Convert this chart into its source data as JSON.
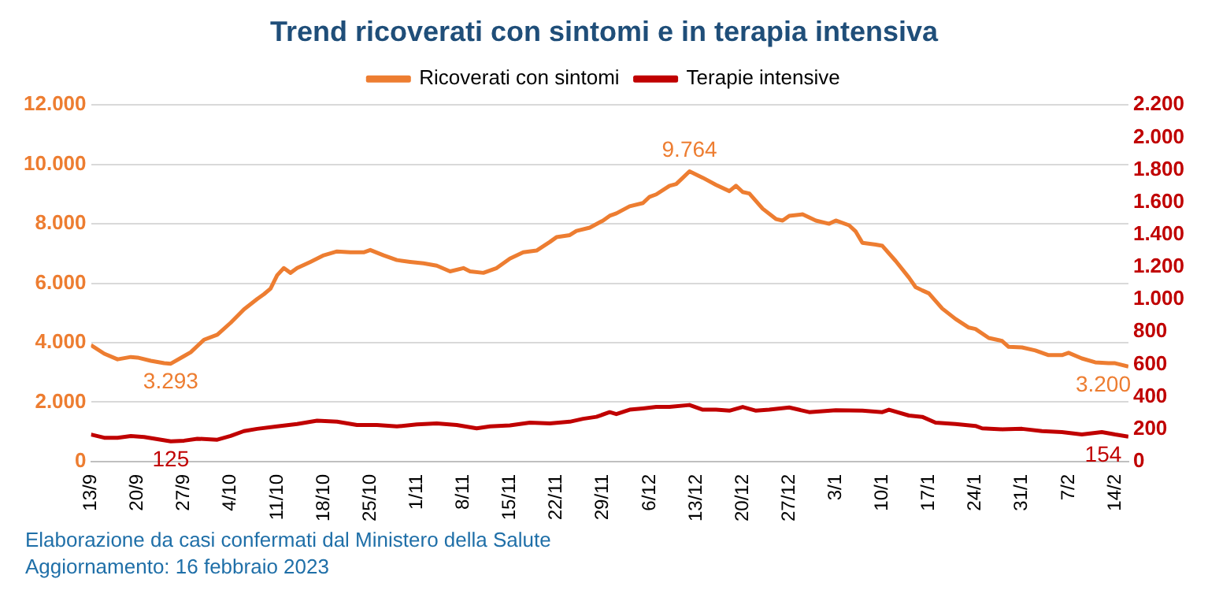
{
  "chart_data": {
    "type": "line",
    "title": "Trend ricoverati con sintomi e in terapia intensiva",
    "legend": "top",
    "grid": "y",
    "marker": "none",
    "line_style": "solid",
    "xlim": [
      "2022-09-13",
      "2023-02-16"
    ],
    "xticks": [
      {
        "value": "2022-09-13",
        "label": "13/9"
      },
      {
        "value": "2022-09-20",
        "label": "20/9"
      },
      {
        "value": "2022-09-27",
        "label": "27/9"
      },
      {
        "value": "2022-10-04",
        "label": "4/10"
      },
      {
        "value": "2022-10-11",
        "label": "11/10"
      },
      {
        "value": "2022-10-18",
        "label": "18/10"
      },
      {
        "value": "2022-10-25",
        "label": "25/10"
      },
      {
        "value": "2022-11-01",
        "label": "1/11"
      },
      {
        "value": "2022-11-08",
        "label": "8/11"
      },
      {
        "value": "2022-11-15",
        "label": "15/11"
      },
      {
        "value": "2022-11-22",
        "label": "22/11"
      },
      {
        "value": "2022-11-29",
        "label": "29/11"
      },
      {
        "value": "2022-12-06",
        "label": "6/12"
      },
      {
        "value": "2022-12-13",
        "label": "13/12"
      },
      {
        "value": "2022-12-20",
        "label": "20/12"
      },
      {
        "value": "2022-12-27",
        "label": "27/12"
      },
      {
        "value": "2023-01-03",
        "label": "3/1"
      },
      {
        "value": "2023-01-10",
        "label": "10/1"
      },
      {
        "value": "2023-01-17",
        "label": "17/1"
      },
      {
        "value": "2023-01-24",
        "label": "24/1"
      },
      {
        "value": "2023-01-31",
        "label": "31/1"
      },
      {
        "value": "2023-02-07",
        "label": "7/2"
      },
      {
        "value": "2023-02-14",
        "label": "14/2"
      }
    ],
    "ylim": [
      0,
      12000
    ],
    "yticks": [
      0,
      {
        "value": 2000,
        "label": "2.000"
      },
      {
        "value": 4000,
        "label": "4.000"
      },
      {
        "value": 6000,
        "label": "6.000"
      },
      {
        "value": 8000,
        "label": "8.000"
      },
      {
        "value": 10000,
        "label": "10.000"
      },
      {
        "value": 12000,
        "label": "12.000"
      }
    ],
    "y2lim": [
      0,
      2200
    ],
    "y2ticks": [
      0,
      200,
      400,
      600,
      800,
      {
        "value": 1000,
        "label": "1.000"
      },
      {
        "value": 1200,
        "label": "1.200"
      },
      {
        "value": 1400,
        "label": "1.400"
      },
      {
        "value": 1600,
        "label": "1.600"
      },
      {
        "value": 1800,
        "label": "1.800"
      },
      {
        "value": 2000,
        "label": "2.000"
      },
      {
        "value": 2200,
        "label": "2.200"
      }
    ],
    "series": [
      {
        "name": "Ricoverati con sintomi",
        "color": "#ed7d31",
        "x": [
          "2022-09-13",
          "2022-09-15",
          "2022-09-17",
          "2022-09-19",
          "2022-09-20",
          "2022-09-22",
          "2022-09-24",
          "2022-09-25",
          "2022-09-27",
          "2022-09-28",
          "2022-09-30",
          "2022-10-02",
          "2022-10-04",
          "2022-10-06",
          "2022-10-08",
          "2022-10-09",
          "2022-10-10",
          "2022-10-11",
          "2022-10-12",
          "2022-10-13",
          "2022-10-14",
          "2022-10-16",
          "2022-10-18",
          "2022-10-20",
          "2022-10-22",
          "2022-10-24",
          "2022-10-25",
          "2022-10-27",
          "2022-10-29",
          "2022-10-31",
          "2022-11-02",
          "2022-11-04",
          "2022-11-06",
          "2022-11-08",
          "2022-11-09",
          "2022-11-11",
          "2022-11-13",
          "2022-11-15",
          "2022-11-17",
          "2022-11-19",
          "2022-11-21",
          "2022-11-22",
          "2022-11-24",
          "2022-11-25",
          "2022-11-27",
          "2022-11-29",
          "2022-11-30",
          "2022-12-01",
          "2022-12-03",
          "2022-12-05",
          "2022-12-06",
          "2022-12-07",
          "2022-12-09",
          "2022-12-10",
          "2022-12-11",
          "2022-12-12",
          "2022-12-14",
          "2022-12-16",
          "2022-12-18",
          "2022-12-19",
          "2022-12-20",
          "2022-12-21",
          "2022-12-23",
          "2022-12-25",
          "2022-12-26",
          "2022-12-27",
          "2022-12-29",
          "2022-12-31",
          "2023-01-02",
          "2023-01-03",
          "2023-01-05",
          "2023-01-06",
          "2023-01-07",
          "2023-01-09",
          "2023-01-10",
          "2023-01-12",
          "2023-01-14",
          "2023-01-15",
          "2023-01-16",
          "2023-01-17",
          "2023-01-19",
          "2023-01-21",
          "2023-01-23",
          "2023-01-24",
          "2023-01-26",
          "2023-01-28",
          "2023-01-29",
          "2023-01-31",
          "2023-02-02",
          "2023-02-04",
          "2023-02-06",
          "2023-02-07",
          "2023-02-09",
          "2023-02-11",
          "2023-02-13",
          "2023-02-14",
          "2023-02-16"
        ],
        "value_labels": [
          null,
          null,
          null,
          null,
          null,
          null,
          null,
          "3.293",
          null,
          null,
          null,
          null,
          null,
          null,
          null,
          null,
          null,
          null,
          null,
          null,
          null,
          null,
          null,
          null,
          null,
          null,
          null,
          null,
          null,
          null,
          null,
          null,
          null,
          null,
          null,
          null,
          null,
          null,
          null,
          null,
          null,
          null,
          null,
          null,
          null,
          null,
          null,
          null,
          null,
          null,
          null,
          null,
          null,
          null,
          null,
          "9.764",
          null,
          null,
          null,
          null,
          null,
          null,
          null,
          null,
          null,
          null,
          null,
          null,
          null,
          null,
          null,
          null,
          null,
          null,
          null,
          null,
          null,
          null,
          null,
          null,
          null,
          null,
          null,
          null,
          null,
          null,
          null,
          null,
          null,
          null,
          null,
          null,
          null,
          null,
          null,
          null,
          "3.200"
        ],
        "values": [
          3920,
          3630,
          3440,
          3520,
          3500,
          3390,
          3310,
          3293,
          3550,
          3680,
          4100,
          4270,
          4670,
          5120,
          5470,
          5630,
          5820,
          6270,
          6510,
          6350,
          6510,
          6720,
          6940,
          7070,
          7040,
          7040,
          7120,
          6940,
          6780,
          6720,
          6670,
          6590,
          6400,
          6510,
          6400,
          6350,
          6510,
          6830,
          7040,
          7100,
          7390,
          7550,
          7620,
          7760,
          7870,
          8110,
          8270,
          8350,
          8590,
          8700,
          8910,
          8990,
          9280,
          9340,
          9550,
          9764,
          9550,
          9310,
          9100,
          9280,
          9070,
          9020,
          8510,
          8160,
          8110,
          8270,
          8320,
          8110,
          8000,
          8110,
          7950,
          7740,
          7360,
          7300,
          7260,
          6750,
          6190,
          5870,
          5760,
          5660,
          5150,
          4800,
          4510,
          4460,
          4160,
          4060,
          3860,
          3840,
          3740,
          3580,
          3580,
          3660,
          3470,
          3340,
          3310,
          3310,
          3200
        ]
      },
      {
        "name": "Terapie intensive",
        "color": "#c00000",
        "axis": "y2",
        "x": [
          "2022-09-13",
          "2022-09-15",
          "2022-09-17",
          "2022-09-19",
          "2022-09-21",
          "2022-09-23",
          "2022-09-25",
          "2022-09-27",
          "2022-09-29",
          "2022-10-02",
          "2022-10-04",
          "2022-10-06",
          "2022-10-08",
          "2022-10-11",
          "2022-10-14",
          "2022-10-17",
          "2022-10-20",
          "2022-10-23",
          "2022-10-26",
          "2022-10-29",
          "2022-11-01",
          "2022-11-04",
          "2022-11-07",
          "2022-11-10",
          "2022-11-12",
          "2022-11-15",
          "2022-11-18",
          "2022-11-21",
          "2022-11-24",
          "2022-11-26",
          "2022-11-28",
          "2022-11-30",
          "2022-12-01",
          "2022-12-03",
          "2022-12-05",
          "2022-12-07",
          "2022-12-09",
          "2022-12-12",
          "2022-12-14",
          "2022-12-16",
          "2022-12-18",
          "2022-12-20",
          "2022-12-22",
          "2022-12-24",
          "2022-12-27",
          "2022-12-30",
          "2023-01-03",
          "2023-01-07",
          "2023-01-10",
          "2023-01-11",
          "2023-01-14",
          "2023-01-16",
          "2023-01-18",
          "2023-01-21",
          "2023-01-24",
          "2023-01-25",
          "2023-01-28",
          "2023-01-31",
          "2023-02-03",
          "2023-02-06",
          "2023-02-09",
          "2023-02-12",
          "2023-02-14",
          "2023-02-16"
        ],
        "value_labels": [
          null,
          null,
          null,
          null,
          null,
          null,
          "125",
          null,
          null,
          null,
          null,
          null,
          null,
          null,
          null,
          null,
          null,
          null,
          null,
          null,
          null,
          null,
          null,
          null,
          null,
          null,
          null,
          null,
          null,
          null,
          null,
          null,
          null,
          null,
          null,
          null,
          null,
          null,
          null,
          null,
          null,
          null,
          null,
          null,
          null,
          null,
          null,
          null,
          null,
          null,
          null,
          null,
          null,
          null,
          null,
          null,
          null,
          null,
          null,
          null,
          null,
          null,
          null,
          "154"
        ],
        "values": [
          167,
          147,
          147,
          158,
          152,
          138,
          125,
          129,
          141,
          135,
          158,
          188,
          202,
          217,
          232,
          252,
          246,
          226,
          226,
          217,
          229,
          235,
          226,
          205,
          217,
          223,
          240,
          235,
          246,
          264,
          276,
          305,
          293,
          320,
          328,
          337,
          337,
          349,
          320,
          320,
          314,
          337,
          314,
          320,
          334,
          305,
          317,
          314,
          305,
          320,
          284,
          276,
          240,
          232,
          220,
          205,
          199,
          202,
          188,
          182,
          167,
          182,
          167,
          154
        ]
      }
    ],
    "annotations": [
      "Elaborazione da casi confermati dal Ministero della Salute",
      "Aggiornamento: 16 febbraio 2023"
    ]
  }
}
